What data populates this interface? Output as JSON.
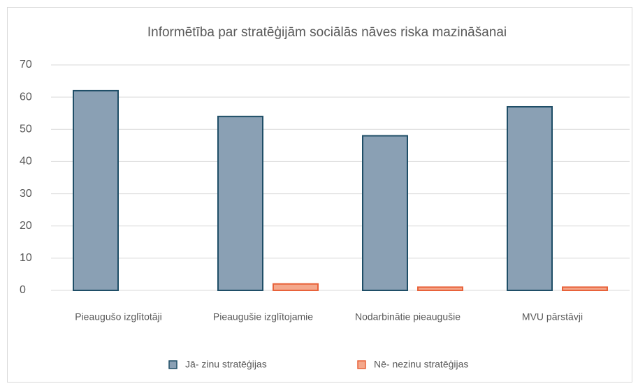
{
  "chart_data": {
    "type": "bar",
    "title": "Informētība par stratēģijām sociālās nāves riska mazināšanai",
    "categories": [
      "Pieaugušo izglītotāji",
      "Pieaugušie izglītojamie",
      "Nodarbinātie pieaugušie",
      "MVU pārstāvji"
    ],
    "series": [
      {
        "name": "Jā- zinu stratēģijas",
        "color": "#8aa0b4",
        "values": [
          62,
          54,
          48,
          57
        ]
      },
      {
        "name": "Nē- nezinu stratēģijas",
        "color": "#f4a88c",
        "values": [
          0,
          2,
          1,
          1
        ]
      }
    ],
    "ylim": [
      0,
      70
    ],
    "yticks": [
      0,
      10,
      20,
      30,
      40,
      50,
      60,
      70
    ],
    "grid": true,
    "legend": "bottom"
  }
}
